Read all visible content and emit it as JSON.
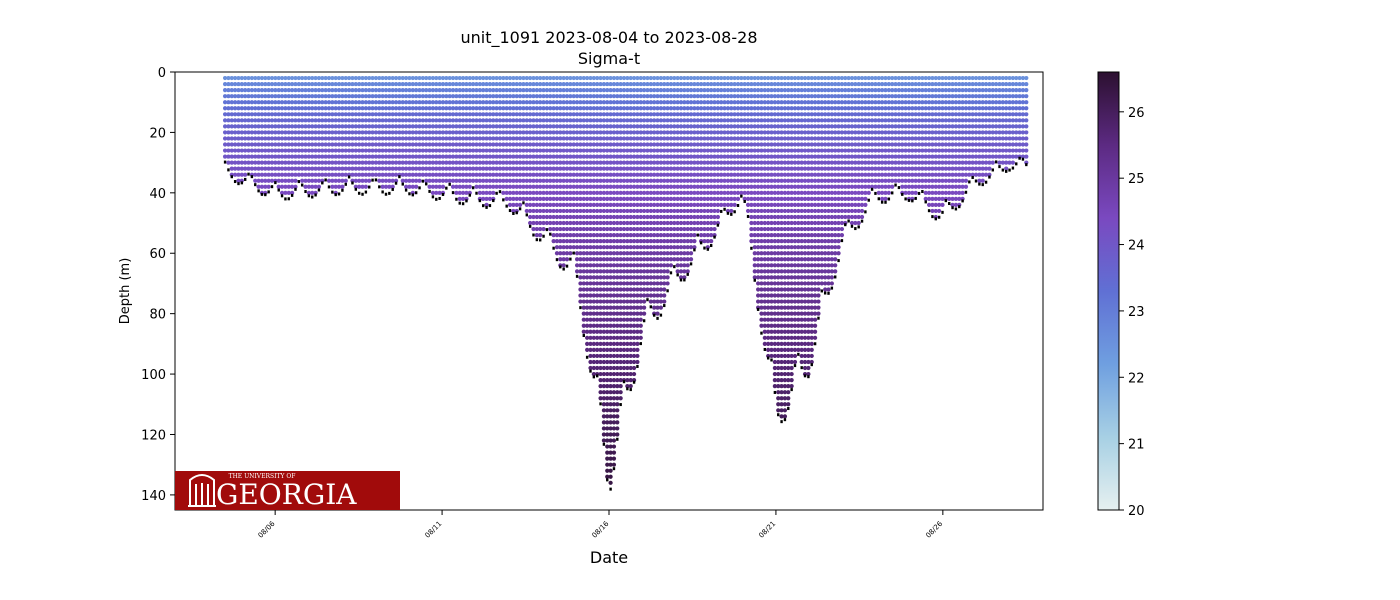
{
  "chart_data": {
    "type": "scatter",
    "title": "unit_1091 2023-08-04 to 2023-08-28",
    "subtitle": "Sigma-t",
    "xlabel": "Date",
    "ylabel": "Depth (m)",
    "x_range": [
      "2023-08-03",
      "2023-08-29"
    ],
    "ylim": [
      145,
      0
    ],
    "y_inverted": true,
    "y_ticks": [
      0,
      20,
      40,
      60,
      80,
      100,
      120,
      140
    ],
    "x_tick_labels": [
      "08/06",
      "08/11",
      "08/16",
      "08/21",
      "08/26"
    ],
    "x_tick_dates": [
      "2023-08-06",
      "2023-08-11",
      "2023-08-16",
      "2023-08-21",
      "2023-08-26"
    ],
    "colorbar": {
      "range": [
        20,
        26.6
      ],
      "ticks": [
        20,
        21,
        22,
        23,
        24,
        25,
        26
      ],
      "colormap": [
        "#e6f0f0",
        "#a7d0e4",
        "#6f9fe0",
        "#6070d4",
        "#7a49c0",
        "#5c2a82",
        "#2c1030"
      ]
    },
    "max_depth_profile": [
      {
        "date": "2023-08-04",
        "depth": 32
      },
      {
        "date": "2023-08-06",
        "depth": 42
      },
      {
        "date": "2023-08-08",
        "depth": 40
      },
      {
        "date": "2023-08-10",
        "depth": 40
      },
      {
        "date": "2023-08-12",
        "depth": 44
      },
      {
        "date": "2023-08-13",
        "depth": 45
      },
      {
        "date": "2023-08-14",
        "depth": 57
      },
      {
        "date": "2023-08-15",
        "depth": 70
      },
      {
        "date": "2023-08-16",
        "depth": 140
      },
      {
        "date": "2023-08-17",
        "depth": 90
      },
      {
        "date": "2023-08-18",
        "depth": 72
      },
      {
        "date": "2023-08-19",
        "depth": 58
      },
      {
        "date": "2023-08-20",
        "depth": 42
      },
      {
        "date": "2023-08-21",
        "depth": 120
      },
      {
        "date": "2023-08-22",
        "depth": 100
      },
      {
        "date": "2023-08-23",
        "depth": 58
      },
      {
        "date": "2023-08-24",
        "depth": 43
      },
      {
        "date": "2023-08-25",
        "depth": 42
      },
      {
        "date": "2023-08-26",
        "depth": 50
      },
      {
        "date": "2023-08-27",
        "depth": 38
      },
      {
        "date": "2023-08-28",
        "depth": 32
      }
    ]
  },
  "logo": {
    "text": "GEORGIA",
    "small_text": "THE UNIVERSITY OF",
    "color": "#a10b0b"
  }
}
